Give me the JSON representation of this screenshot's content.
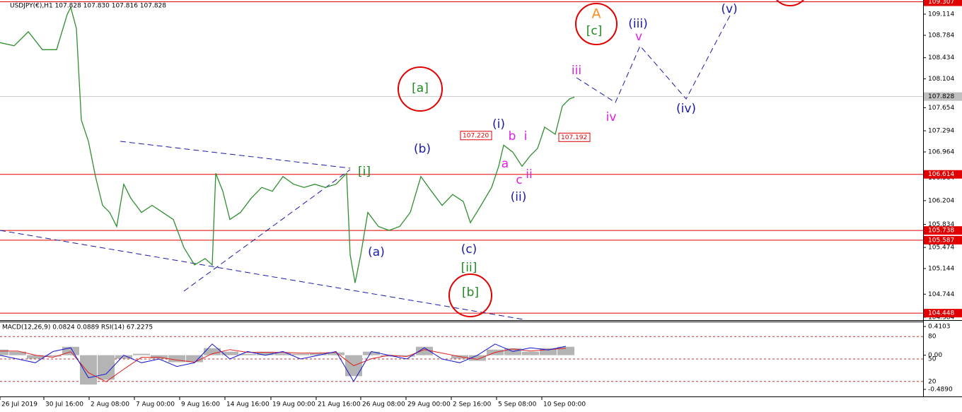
{
  "chart_data": [
    {
      "type": "line",
      "title": "USDJPY(€),H1  107.828 107.830 107.816 107.828",
      "x": [
        0,
        20,
        40,
        60,
        80,
        95,
        100,
        108,
        115,
        125,
        135,
        145,
        155,
        165,
        175,
        185,
        200,
        215,
        230,
        245,
        260,
        275,
        290,
        300,
        305,
        315,
        325,
        340,
        355,
        370,
        385,
        400,
        415,
        430,
        445,
        460,
        475,
        490,
        495,
        502,
        510,
        520,
        535,
        550,
        565,
        580,
        595,
        610,
        625,
        640,
        655,
        665,
        680,
        695,
        705,
        712,
        725,
        738,
        750,
        760,
        770,
        785,
        795,
        805,
        812
      ],
      "values": [
        108.67,
        108.62,
        108.84,
        108.56,
        108.56,
        109.11,
        109.22,
        108.89,
        107.46,
        107.13,
        106.58,
        106.13,
        106.02,
        105.8,
        106.46,
        106.24,
        106.02,
        106.13,
        106.02,
        105.91,
        105.47,
        105.2,
        105.3,
        105.2,
        106.63,
        106.35,
        105.91,
        106.02,
        106.24,
        106.41,
        106.35,
        106.58,
        106.46,
        106.41,
        106.46,
        106.41,
        106.46,
        106.63,
        105.36,
        104.92,
        105.36,
        106.02,
        105.8,
        105.74,
        105.8,
        106.02,
        106.58,
        106.35,
        106.13,
        106.3,
        106.19,
        105.86,
        106.13,
        106.41,
        106.74,
        107.07,
        106.96,
        106.74,
        106.91,
        107.02,
        107.35,
        107.24,
        107.68,
        107.79,
        107.82
      ],
      "color": "#2f8f2f",
      "xlim": [
        0,
        1305
      ],
      "xticks": [
        {
          "value": 0,
          "label": "26 Jul 2019"
        },
        {
          "value": 62,
          "label": "30 Jul 16:00"
        },
        {
          "value": 126,
          "label": "2 Aug 08:00"
        },
        {
          "value": 190,
          "label": "7 Aug 00:00"
        },
        {
          "value": 254,
          "label": "9 Aug 16:00"
        },
        {
          "value": 318,
          "label": "14 Aug 16:00"
        },
        {
          "value": 383,
          "label": "19 Aug 00:00"
        },
        {
          "value": 447,
          "label": "21 Aug 16:00"
        },
        {
          "value": 510,
          "label": "26 Aug 08:00"
        },
        {
          "value": 574,
          "label": "29 Aug 00:00"
        },
        {
          "value": 638,
          "label": "2 Sep 16:00"
        },
        {
          "value": 702,
          "label": "5 Sep 08:00"
        },
        {
          "value": 766,
          "label": "10 Sep 00:00"
        }
      ],
      "ylim": [
        104.35,
        109.335
      ],
      "yticks": [
        109.114,
        108.784,
        108.434,
        108.104,
        107.654,
        107.294,
        106.964,
        106.564,
        106.204,
        105.834,
        105.474,
        105.144,
        104.744,
        104.384
      ],
      "levels": [
        109.307,
        106.614,
        105.738,
        105.587,
        104.448
      ],
      "level_color": "#e00000",
      "last_price": 107.828,
      "price_labels": [
        {
          "value": 107.22,
          "label": "107.220"
        },
        {
          "value": 107.192,
          "label": "107.192"
        }
      ],
      "annotations": [
        {
          "text": "A",
          "color": "#ff8c1a"
        },
        {
          "text": "[c]",
          "color": "#1f8a1f"
        },
        {
          "text": "[a]",
          "color": "#1f8a1f"
        },
        {
          "text": "[i]",
          "color": "#1f8a1f"
        },
        {
          "text": "[ii]",
          "color": "#1f8a1f"
        },
        {
          "text": "[b]",
          "color": "#1f8a1f"
        },
        {
          "text": "(i)",
          "color": "#1a1aa8"
        },
        {
          "text": "(ii)",
          "color": "#1a1aa8"
        },
        {
          "text": "(iii)",
          "color": "#1a1aa8"
        },
        {
          "text": "(iv)",
          "color": "#1a1aa8"
        },
        {
          "text": "(v)",
          "color": "#1a1aa8"
        },
        {
          "text": "(a)",
          "color": "#1a1aa8"
        },
        {
          "text": "(b)",
          "color": "#1a1aa8"
        },
        {
          "text": "(c)",
          "color": "#1a1aa8"
        },
        {
          "text": "a",
          "color": "#e020e0"
        },
        {
          "text": "b",
          "color": "#e020e0"
        },
        {
          "text": "c",
          "color": "#e020e0"
        },
        {
          "text": "i",
          "color": "#e020e0"
        },
        {
          "text": "ii",
          "color": "#e020e0"
        },
        {
          "text": "iii",
          "color": "#e020e0"
        },
        {
          "text": "iv",
          "color": "#e020e0"
        },
        {
          "text": "v",
          "color": "#e020e0"
        }
      ]
    },
    {
      "type": "indicator",
      "title": "MACD(12,26,9) 0.0824 0.0889  RSI(14) 67.2275",
      "x": [
        0,
        25,
        50,
        75,
        100,
        125,
        150,
        175,
        200,
        225,
        250,
        275,
        300,
        325,
        350,
        375,
        400,
        425,
        450,
        475,
        500,
        525,
        550,
        575,
        600,
        625,
        650,
        675,
        700,
        725,
        750,
        775,
        800
      ],
      "histogram": [
        0.08,
        0.05,
        -0.05,
        -0.02,
        0.12,
        -0.42,
        -0.35,
        -0.05,
        0.02,
        -0.05,
        -0.1,
        -0.1,
        0.1,
        0.05,
        0.02,
        0.05,
        0.03,
        0.02,
        0.03,
        0.04,
        -0.3,
        0.05,
        -0.02,
        -0.02,
        0.12,
        0,
        -0.05,
        -0.08,
        0.08,
        0.1,
        0.05,
        0.1,
        0.12
      ],
      "histogram_color": "#b4b4b4",
      "signal": [
        0.06,
        0.06,
        0,
        -0.03,
        0.05,
        -0.25,
        -0.38,
        -0.2,
        -0.03,
        -0.03,
        -0.07,
        -0.1,
        0.02,
        0.08,
        0.04,
        0.04,
        0.04,
        0.03,
        0.03,
        0.04,
        -0.15,
        -0.05,
        0,
        -0.02,
        0.08,
        0.03,
        -0.02,
        -0.06,
        0.04,
        0.09,
        0.06,
        0.08,
        0.1
      ],
      "signal_color": "#e02020",
      "rsi": [
        55,
        50,
        45,
        60,
        65,
        25,
        30,
        55,
        45,
        50,
        40,
        45,
        70,
        50,
        60,
        55,
        60,
        50,
        55,
        60,
        20,
        60,
        55,
        50,
        65,
        50,
        45,
        55,
        70,
        60,
        65,
        62,
        67
      ],
      "rsi_color": "#1515d0",
      "xlim": [
        0,
        1305
      ],
      "ylim": [
        -0.59,
        0.481
      ],
      "yticks": [
        0.4103,
        {
          "value": 0,
          "label": "0.00"
        },
        {
          "value": -0.489,
          "label": "-0.4890"
        }
      ],
      "y2lim": [
        0,
        100
      ],
      "y2ticks": [
        80,
        50,
        20
      ]
    }
  ]
}
